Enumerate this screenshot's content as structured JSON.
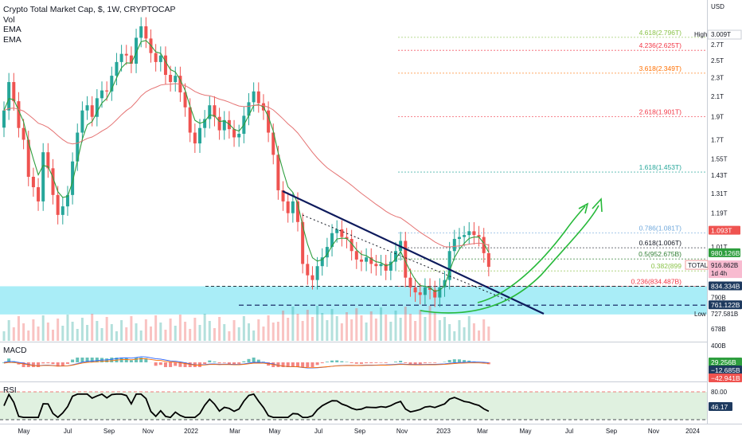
{
  "header": {
    "title": "Crypto Total Market Cap, $, 1W, CRYPTOCAP",
    "studies": [
      "Vol",
      "EMA",
      "EMA"
    ]
  },
  "colors": {
    "up": "#26a69a",
    "down": "#ef5350",
    "ema_fast": "#2e9e3e",
    "ema_slow": "#e57373",
    "zone": "#62dff0",
    "trend": "#0d1a5c",
    "arrow": "#27b93a"
  },
  "price_axis": {
    "unit": "USD",
    "ticks": [
      "2.7T",
      "2.5T",
      "2.3T",
      "2.1T",
      "1.9T",
      "1.7T",
      "1.55T",
      "1.43T",
      "1.31T",
      "1.19T",
      "1.01T",
      "790B",
      "678B"
    ],
    "high_label": "High",
    "high_value": "3.009T",
    "low_label": "Low",
    "low_value": "727.581B"
  },
  "time_axis": [
    "May",
    "Jul",
    "Sep",
    "Nov",
    "2022",
    "Mar",
    "May",
    "Jul",
    "Sep",
    "Nov",
    "2023",
    "Mar",
    "May",
    "Jul",
    "Sep",
    "Nov",
    "2024"
  ],
  "fib_levels": [
    {
      "label": "4.618(2.796T)",
      "color": "#8bc34a"
    },
    {
      "label": "4.236(2.625T)",
      "color": "#f23645"
    },
    {
      "label": "3.618(2.349T)",
      "color": "#ff6f00"
    },
    {
      "label": "2.618(1.901T)",
      "color": "#f23645"
    },
    {
      "label": "1.618(1.453T)",
      "color": "#26a69a"
    },
    {
      "label": "0.786(1.081T)",
      "color": "#6fa8dc"
    },
    {
      "label": "0.618(1.006T)",
      "color": "#131722"
    },
    {
      "label": "0.5(952.675B)",
      "color": "#2e7d32"
    },
    {
      "label": "0.382(899",
      "color": "#8bc34a"
    },
    {
      "label": "0.236(834.487B)",
      "color": "#f23645"
    }
  ],
  "price_tags": {
    "ema_slow": "1.093T",
    "ema_fast": "980.126B",
    "symbol": "TOTAL",
    "last": "916.862B",
    "countdown": "1d 4h",
    "partial": "8??B",
    "level1": "834.334B",
    "level2": "761.122B"
  },
  "macd": {
    "label": "MACD",
    "axis_top": "400B",
    "tags": [
      "29.256B",
      "−12.685B",
      "−42.941B"
    ]
  },
  "rsi": {
    "label": "RSI",
    "upper": "80.00",
    "value": "46.17"
  },
  "chart_data": {
    "type": "candlestick",
    "title": "Crypto Total Market Cap, $, 1W, CRYPTOCAP",
    "unit": "USD (billions)",
    "x_range": [
      "2021-04",
      "2024-01"
    ],
    "y_scale": "log",
    "ylim_billions": [
      640,
      3200
    ],
    "closes_billions": [
      1960,
      2250,
      2050,
      1800,
      1700,
      1420,
      1350,
      1260,
      1600,
      1480,
      1300,
      1180,
      1230,
      1300,
      1530,
      1760,
      1960,
      2010,
      1900,
      2080,
      2160,
      2150,
      2320,
      2480,
      2580,
      2560,
      2460,
      2790,
      2950,
      2780,
      2590,
      2480,
      2560,
      2330,
      2250,
      2320,
      2140,
      1990,
      1760,
      1670,
      1800,
      1880,
      2010,
      1900,
      1780,
      1870,
      1790,
      1720,
      1750,
      1910,
      2040,
      2150,
      2030,
      1960,
      1760,
      1580,
      1330,
      1260,
      1190,
      1260,
      1140,
      930,
      880,
      860,
      920,
      960,
      1010,
      1080,
      1100,
      1060,
      1050,
      990,
      950,
      940,
      960,
      930,
      920,
      930,
      900,
      940,
      990,
      1040,
      870,
      830,
      810,
      800,
      830,
      820,
      790,
      830,
      860,
      990,
      1050,
      1060,
      1070,
      1090,
      1070,
      1060,
      980,
      917
    ],
    "ema_fast": {
      "series": "EMA",
      "last_billions": 980.126
    },
    "ema_slow": {
      "series": "EMA",
      "last_billions": 1093
    },
    "high_billions": 3009,
    "low_billions": 727.581,
    "fibonacci": [
      {
        "ratio": 4.618,
        "price_billions": 2796
      },
      {
        "ratio": 4.236,
        "price_billions": 2625
      },
      {
        "ratio": 3.618,
        "price_billions": 2349
      },
      {
        "ratio": 2.618,
        "price_billions": 1901
      },
      {
        "ratio": 1.618,
        "price_billions": 1453
      },
      {
        "ratio": 0.786,
        "price_billions": 1081
      },
      {
        "ratio": 0.618,
        "price_billions": 1006
      },
      {
        "ratio": 0.5,
        "price_billions": 952.675
      },
      {
        "ratio": 0.382,
        "price_billions": 899
      },
      {
        "ratio": 0.236,
        "price_billions": 834.487
      }
    ],
    "rsi_last": 46.17
  }
}
